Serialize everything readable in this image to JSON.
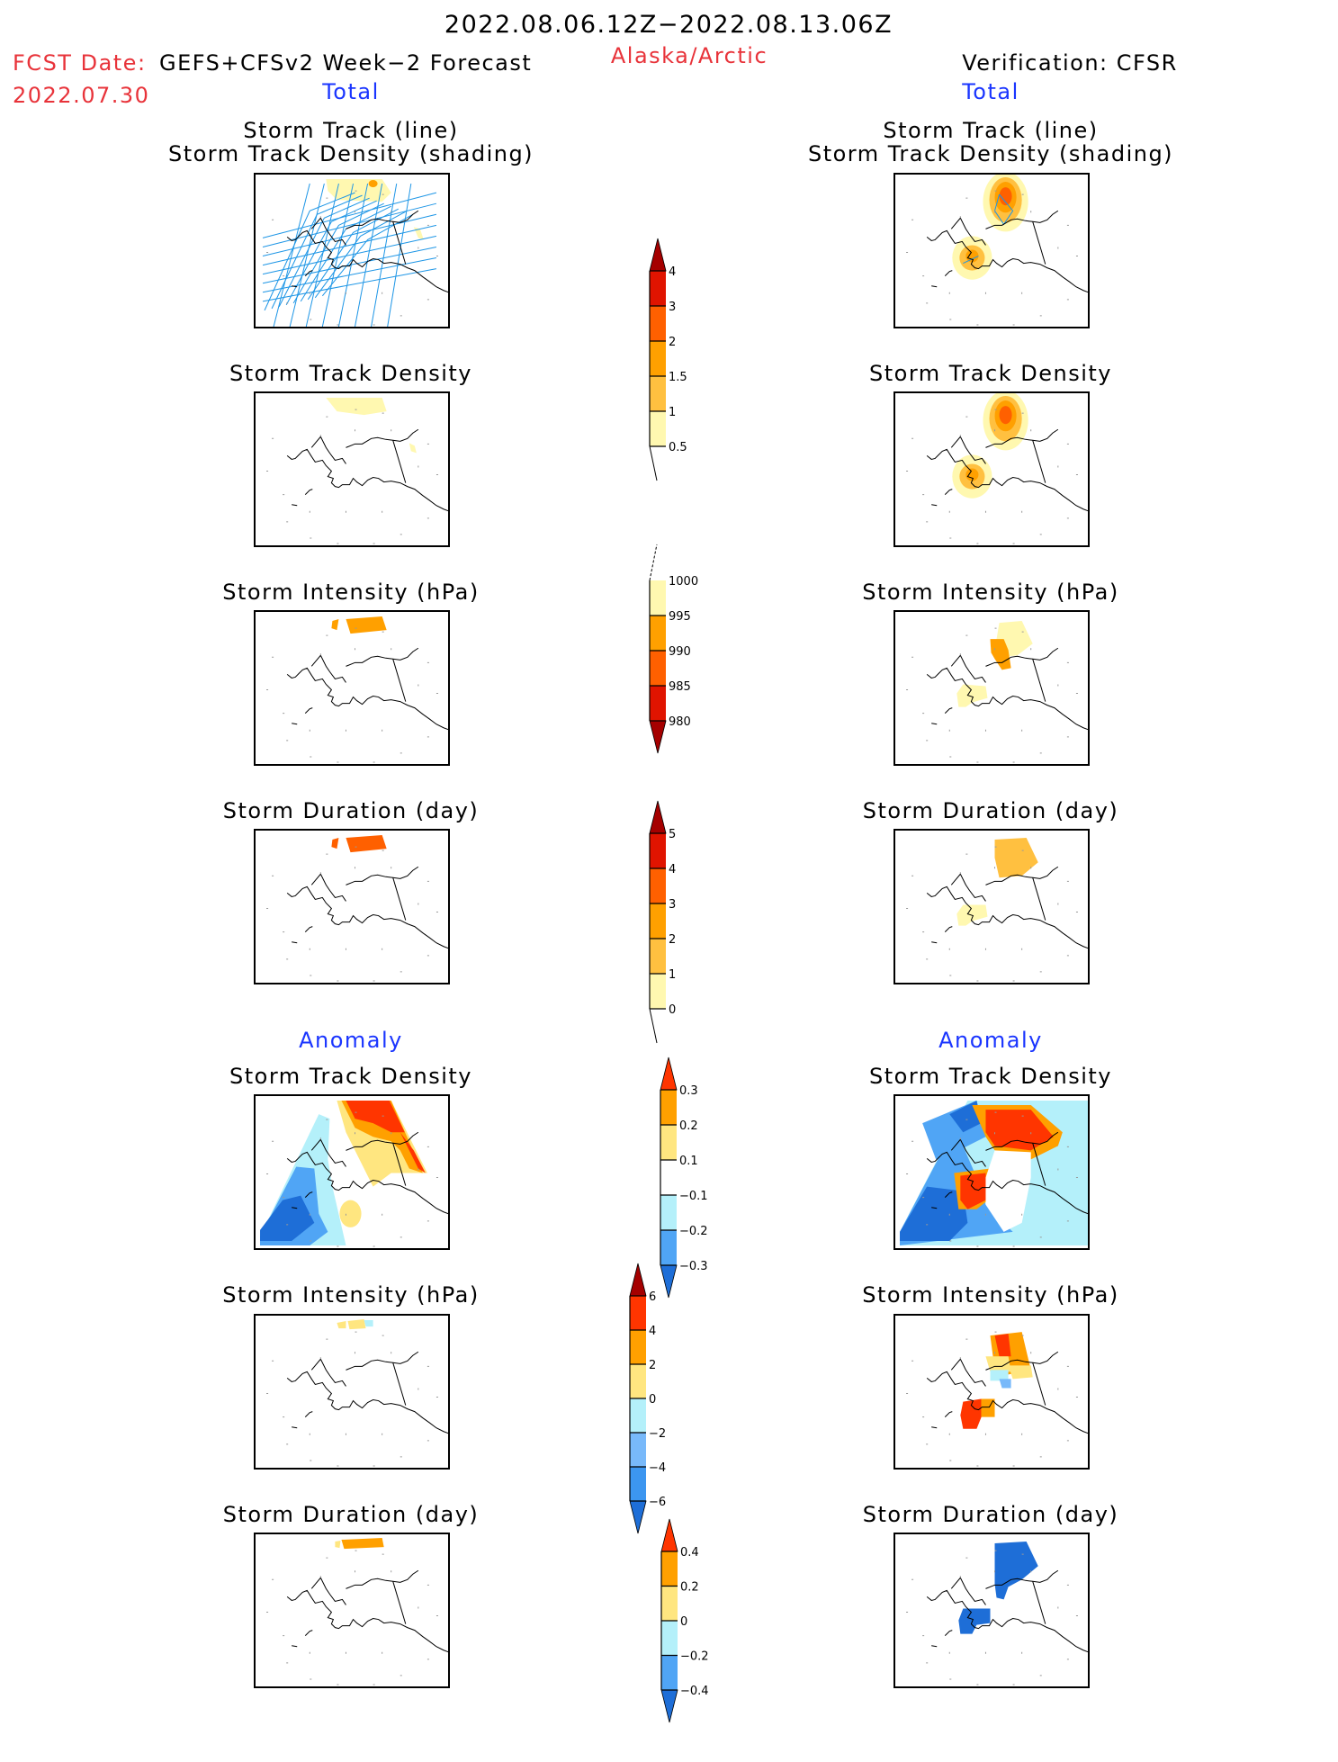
{
  "header": {
    "period": "2022.08.06.12Z−2022.08.13.06Z",
    "fcst_label": "FCST Date:",
    "fcst_date": "2022.07.30",
    "model": "GEFS+CFSv2 Week−2 Forecast",
    "region": "Alaska/Arctic",
    "verification": "Verification: CFSR"
  },
  "sections": {
    "total_left": "Total",
    "total_right": "Total",
    "anomaly_left": "Anomaly",
    "anomaly_right": "Anomaly"
  },
  "panel_titles": {
    "track_line": "Storm Track (line)",
    "track_shading": "Storm Track Density (shading)",
    "density": "Storm Track Density",
    "intensity": "Storm Intensity (hPa)",
    "duration": "Storm Duration (day)"
  },
  "colors": {
    "c_pale": "#fff8b0",
    "c_lt_orange": "#ffc040",
    "c_orange": "#ffa000",
    "c_dk_orange": "#ff6000",
    "c_red": "#e01400",
    "c_darkred": "#a50000",
    "a_yellow": "#ffe680",
    "a_orange": "#ffa000",
    "a_red": "#ff3500",
    "a_ltblue": "#b4f0fa",
    "a_midblue": "#50a5f5",
    "a_blue": "#1e6ed7",
    "a_bluemid2": "#78b9fa",
    "a_bluemid3": "#3c96f0",
    "track_line": "#1e96e6"
  },
  "chart_data": [
    {
      "type": "heatmap",
      "title": "Storm Track (line) / Storm Track Density (shading)",
      "source": "GEFS+CFSv2 forecast",
      "column": "forecast-total",
      "colorbar": "density"
    },
    {
      "type": "heatmap",
      "title": "Storm Track Density",
      "column": "forecast-total",
      "colorbar": "density"
    },
    {
      "type": "heatmap",
      "title": "Storm Intensity (hPa)",
      "column": "forecast-total",
      "colorbar": "intensity"
    },
    {
      "type": "heatmap",
      "title": "Storm Duration (day)",
      "column": "forecast-total",
      "colorbar": "duration"
    },
    {
      "type": "heatmap",
      "title": "Storm Track Density",
      "column": "forecast-anomaly",
      "colorbar": "density_anom"
    },
    {
      "type": "heatmap",
      "title": "Storm Intensity (hPa)",
      "column": "forecast-anomaly",
      "colorbar": "intensity_anom"
    },
    {
      "type": "heatmap",
      "title": "Storm Duration (day)",
      "column": "forecast-anomaly",
      "colorbar": "duration_anom"
    },
    {
      "type": "heatmap",
      "title": "Storm Track (line) / Storm Track Density (shading)",
      "column": "verification-total",
      "colorbar": "density"
    },
    {
      "type": "heatmap",
      "title": "Storm Track Density",
      "column": "verification-total",
      "colorbar": "density"
    },
    {
      "type": "heatmap",
      "title": "Storm Intensity (hPa)",
      "column": "verification-total",
      "colorbar": "intensity"
    },
    {
      "type": "heatmap",
      "title": "Storm Duration (day)",
      "column": "verification-total",
      "colorbar": "duration"
    },
    {
      "type": "heatmap",
      "title": "Storm Track Density",
      "column": "verification-anomaly",
      "colorbar": "density_anom"
    },
    {
      "type": "heatmap",
      "title": "Storm Intensity (hPa)",
      "column": "verification-anomaly",
      "colorbar": "intensity_anom"
    },
    {
      "type": "heatmap",
      "title": "Storm Duration (day)",
      "column": "verification-anomaly",
      "colorbar": "duration_anom"
    }
  ],
  "colorbars": {
    "density": {
      "ticks": [
        "4",
        "3",
        "2",
        "1.5",
        "1",
        "0.5"
      ],
      "colors": [
        "#e01400",
        "#ff6000",
        "#ffa000",
        "#ffc040",
        "#fff8b0"
      ],
      "top_arrow": "#a50000"
    },
    "intensity": {
      "ticks": [
        "1000",
        "995",
        "990",
        "985",
        "980"
      ],
      "colors": [
        "#fff8b0",
        "#ffa000",
        "#ff6000",
        "#e01400"
      ],
      "bottom_arrow": "#a50000"
    },
    "duration": {
      "ticks": [
        "5",
        "4",
        "3",
        "2",
        "1",
        "0"
      ],
      "colors": [
        "#e01400",
        "#ff6000",
        "#ffa000",
        "#ffc040",
        "#fff8b0"
      ],
      "top_arrow": "#a50000"
    },
    "density_anom": {
      "ticks": [
        "0.3",
        "0.2",
        "0.1",
        "−0.1",
        "−0.2",
        "−0.3"
      ],
      "colors": [
        "#ffa000",
        "#ffe680",
        "#ffffff",
        "#b4f0fa",
        "#50a5f5"
      ],
      "top_arrow": "#ff3500",
      "bottom_arrow": "#1e6ed7"
    },
    "intensity_anom": {
      "ticks": [
        "6",
        "4",
        "2",
        "0",
        "−2",
        "−4",
        "−6"
      ],
      "colors": [
        "#ff3500",
        "#ffa000",
        "#ffe680",
        "#b4f0fa",
        "#78b9fa",
        "#3c96f0"
      ],
      "top_arrow": "#a50000",
      "bottom_arrow": "#1e6ed7"
    },
    "duration_anom": {
      "ticks": [
        "0.4",
        "0.2",
        "0",
        "−0.2",
        "−0.4"
      ],
      "colors": [
        "#ffa000",
        "#ffe680",
        "#b4f0fa",
        "#50a5f5"
      ],
      "top_arrow": "#ff3500",
      "bottom_arrow": "#1e6ed7"
    }
  }
}
